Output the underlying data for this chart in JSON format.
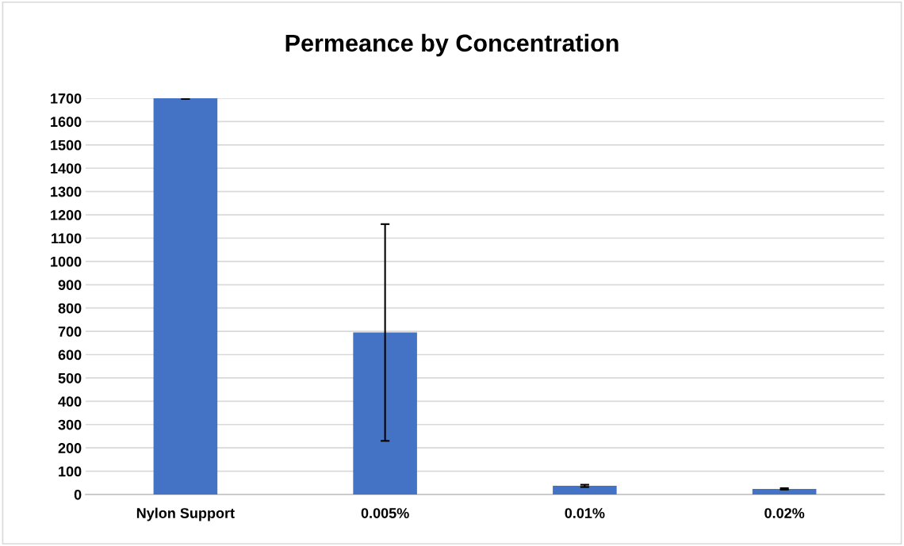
{
  "chart_data": {
    "type": "bar",
    "title": "Permeance by Concentration",
    "categories": [
      "Nylon Support",
      "0.005%",
      "0.01%",
      "0.02%"
    ],
    "values": [
      1700,
      695,
      37,
      24
    ],
    "errors": [
      3,
      465,
      5,
      3
    ],
    "color": "#4472c4",
    "ylim": [
      0,
      1700
    ],
    "yticks": [
      0,
      100,
      200,
      300,
      400,
      500,
      600,
      700,
      800,
      900,
      1000,
      1100,
      1200,
      1300,
      1400,
      1500,
      1600,
      1700
    ],
    "grid": "y"
  }
}
